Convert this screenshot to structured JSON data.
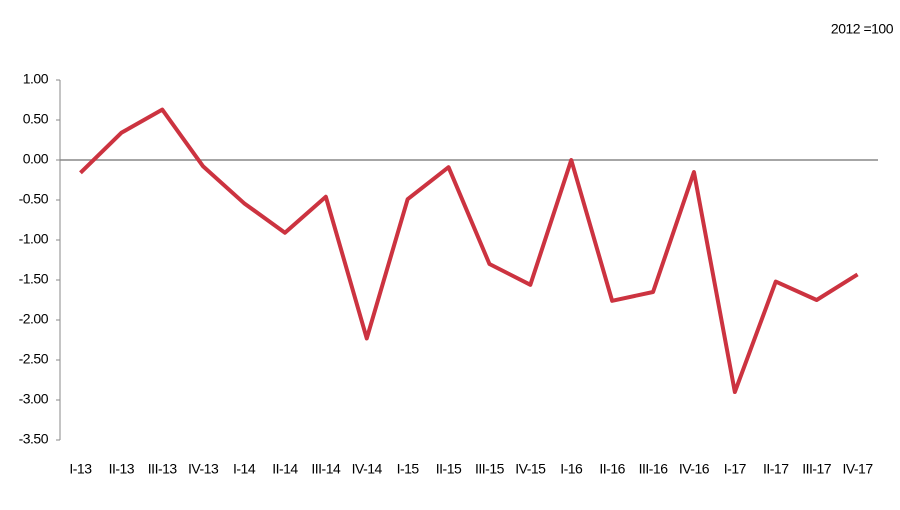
{
  "chart_data": {
    "type": "line",
    "note": "2012 =100",
    "categories": [
      "I-13",
      "II-13",
      "III-13",
      "IV-13",
      "I-14",
      "II-14",
      "III-14",
      "IV-14",
      "I-15",
      "II-15",
      "III-15",
      "IV-15",
      "I-16",
      "II-16",
      "III-16",
      "IV-16",
      "I-17",
      "II-17",
      "III-17",
      "IV-17"
    ],
    "values": [
      -0.16,
      0.34,
      0.63,
      -0.08,
      -0.54,
      -0.91,
      -0.46,
      -2.23,
      -0.49,
      -0.09,
      -1.3,
      -1.56,
      0.0,
      -1.76,
      -1.65,
      -0.15,
      -2.9,
      -1.52,
      -1.75,
      -1.43
    ],
    "color": "#cc3340",
    "ylim": [
      -3.5,
      1.0
    ],
    "yticks": [
      {
        "value": 1.0,
        "label": "1.00"
      },
      {
        "value": 0.5,
        "label": "0.50"
      },
      {
        "value": 0,
        "label": "0.00"
      },
      {
        "value": -0.5,
        "label": "-0.50"
      },
      {
        "value": -1.0,
        "label": "-1.00"
      },
      {
        "value": -1.5,
        "label": "-1.50"
      },
      {
        "value": -2.0,
        "label": "-2.00"
      },
      {
        "value": -2.5,
        "label": "-2.50"
      },
      {
        "value": -3.0,
        "label": "-3.00"
      },
      {
        "value": -3.5,
        "label": "-3.50"
      }
    ],
    "grid": false
  }
}
